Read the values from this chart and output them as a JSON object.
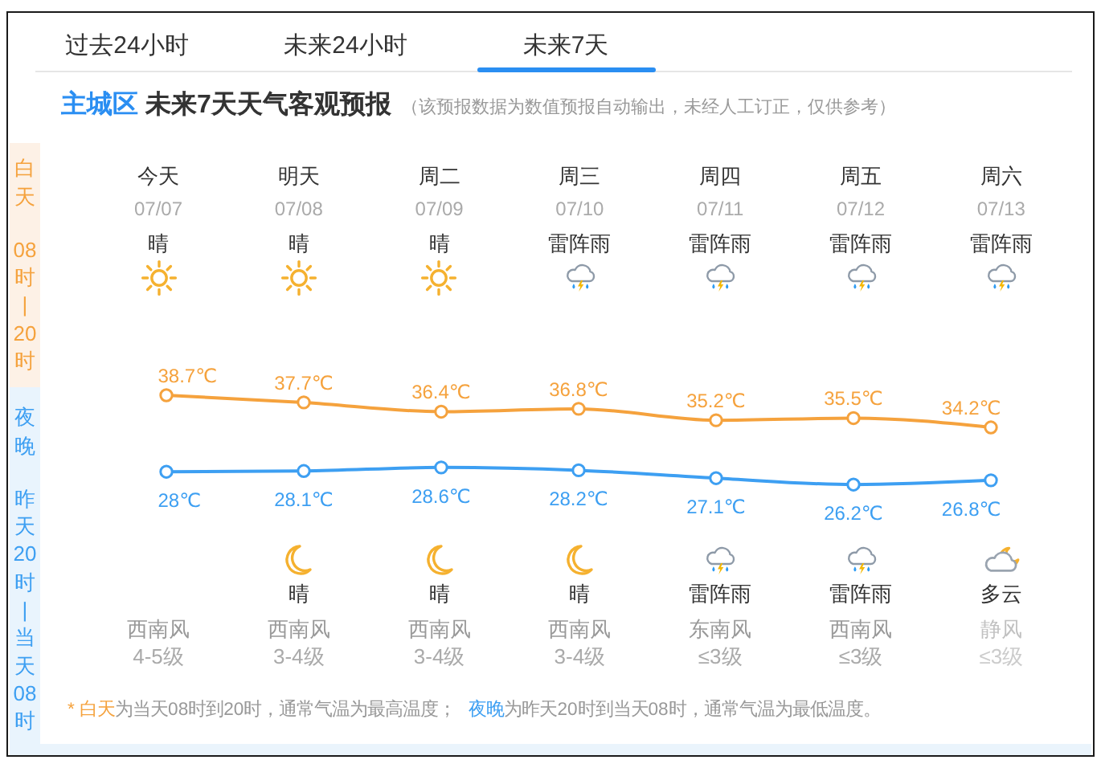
{
  "chart_data": {
    "type": "line",
    "title": "主城区 未来7天天气客观预报",
    "subtitle": "（该预报数据为数值预报自动输出，未经人工订正，仅供参考）",
    "categories": [
      "今天",
      "明天",
      "周二",
      "周三",
      "周四",
      "周五",
      "周六"
    ],
    "series": [
      {
        "color": "#f5a23d",
        "values": [
          38.7,
          37.7,
          36.4,
          36.8,
          35.2,
          35.5,
          34.2
        ],
        "value_labels": [
          "38.7℃",
          "37.7℃",
          "36.4℃",
          "36.8℃",
          "35.2℃",
          "35.5℃",
          "34.2℃"
        ]
      },
      {
        "color": "#3d9ff2",
        "values": [
          28,
          28.1,
          28.6,
          28.2,
          27.1,
          26.2,
          26.8
        ],
        "value_labels": [
          "28℃",
          "28.1℃",
          "28.6℃",
          "28.2℃",
          "27.1℃",
          "26.2℃",
          "26.8℃"
        ]
      }
    ],
    "marker": "circle",
    "line_style": "solid",
    "tick_labels": "x",
    "annotations": [
      "过去24小时",
      "未来24小时",
      "未来7天",
      "白天",
      "08时|20时",
      "夜晚",
      "昨天20时|当天08时",
      "07/07",
      "07/08",
      "07/09",
      "07/10",
      "07/11",
      "07/12",
      "07/13",
      "晴",
      "晴",
      "晴",
      "雷阵雨",
      "雷阵雨",
      "雷阵雨",
      "雷阵雨",
      "晴",
      "晴",
      "晴",
      "雷阵雨",
      "雷阵雨",
      "多云",
      "西南风",
      "西南风",
      "西南风",
      "西南风",
      "东南风",
      "西南风",
      "静风",
      "4-5级",
      "3-4级",
      "3-4级",
      "3-4级",
      "≤3级",
      "≤3级",
      "≤3级",
      "* 白天",
      "为当天08时到20时，通常气温为最高温度；",
      "夜晚",
      "为昨天20时到当天08时，通常气温为最低温度。"
    ]
  }
}
